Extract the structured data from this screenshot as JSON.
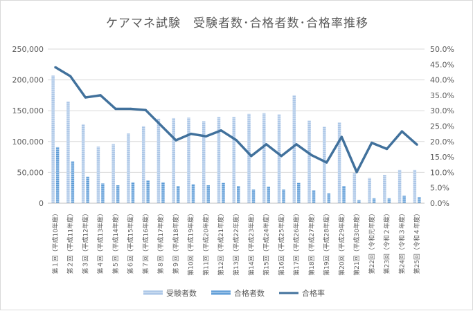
{
  "chart_data": {
    "type": "bar",
    "title": "ケアマネ試験　受験者数･合格者数･合格率推移",
    "xlabel": "",
    "ylabel": "",
    "ylim": [
      0,
      250000
    ],
    "y2lim": [
      0,
      0.5
    ],
    "y_ticks": [
      "0",
      "50,000",
      "100,000",
      "150,000",
      "200,000",
      "250,000"
    ],
    "y2_ticks": [
      "0.0%",
      "5.0%",
      "10.0%",
      "15.0%",
      "20.0%",
      "25.0%",
      "30.0%",
      "35.0%",
      "40.0%",
      "45.0%",
      "50.0%"
    ],
    "grid": true,
    "legend_position": "bottom",
    "categories": [
      "第１回（平成10年度）",
      "第２回（平成11年度）",
      "第３回（平成12年度）",
      "第４回（平成13年度）",
      "第５回（平成14年度）",
      "第６回（平成15年度）",
      "第７回（平成16年度）",
      "第８回（平成17年度）",
      "第９回（平成18年度）",
      "第10回（平成19年度）",
      "第11回（平成20年度）",
      "第12回（平成21年度）",
      "第13回（平成22年度）",
      "第14回（平成23年度）",
      "第15回（平成24年度）",
      "第16回（平成25年度）",
      "第17回（平成26年度）",
      "第18回（平成27年度）",
      "第19回（平成28年度）",
      "第20回（平成29年度）",
      "第21回（平成30年度）",
      "第22回（令和元年度）",
      "第23回（令和２年度）",
      "第24回（令和３年度）",
      "第25回（令和４年度）"
    ],
    "series": [
      {
        "name": "受験者数",
        "kind": "bar",
        "color": "#a9c4e6",
        "values": [
          207000,
          165000,
          128000,
          92000,
          96000,
          113000,
          125000,
          137000,
          138000,
          139000,
          133000,
          140000,
          140000,
          145000,
          146000,
          144000,
          175000,
          134000,
          124000,
          131000,
          49000,
          41000,
          46000,
          54000,
          54000
        ]
      },
      {
        "name": "合格者数",
        "kind": "bar",
        "color": "#5b9bd5",
        "values": [
          91000,
          68000,
          43000,
          32000,
          29000,
          34000,
          37000,
          34000,
          28000,
          31000,
          29000,
          33000,
          28000,
          22000,
          27000,
          22000,
          33000,
          21000,
          16000,
          28000,
          5000,
          8000,
          8000,
          12000,
          10000
        ]
      },
      {
        "name": "合格率",
        "kind": "line",
        "axis": "right",
        "color": "#41719c",
        "values": [
          0.441,
          0.412,
          0.343,
          0.35,
          0.306,
          0.306,
          0.302,
          0.253,
          0.204,
          0.225,
          0.217,
          0.236,
          0.205,
          0.153,
          0.191,
          0.153,
          0.191,
          0.156,
          0.132,
          0.215,
          0.101,
          0.196,
          0.176,
          0.233,
          0.19
        ]
      }
    ]
  }
}
